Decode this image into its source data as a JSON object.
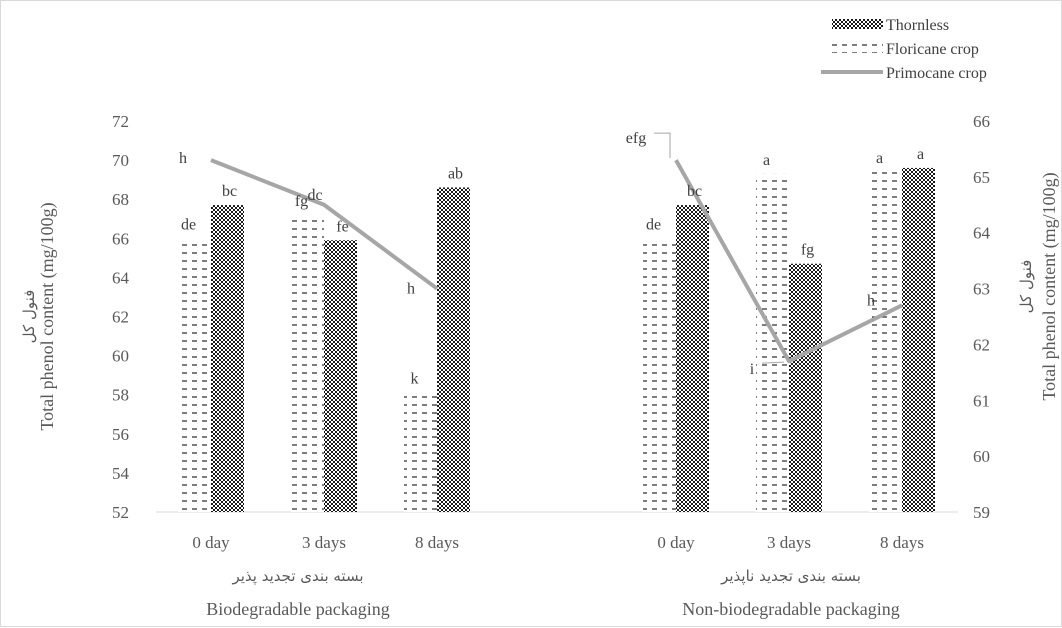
{
  "chart_data": {
    "type": "bar",
    "groups": [
      {
        "name_ar": "بسته بندی تجدید پذیر",
        "name_en": "Biodegradable packaging",
        "categories": [
          "0 day",
          "3 days",
          "8 days"
        ]
      },
      {
        "name_ar": "بسته بندی تجدید ناپذیر",
        "name_en": "Non-biodegradable packaging",
        "categories": [
          "0 day",
          "3 days",
          "8 days"
        ]
      }
    ],
    "series": [
      {
        "name": "Floricane crop",
        "kind": "bar",
        "axis": "left",
        "pattern": "dashes",
        "values": [
          66.0,
          67.2,
          58.1,
          66.0,
          69.3,
          69.4
        ],
        "labels": [
          "de",
          "fg",
          "k",
          "de",
          "a",
          "a"
        ]
      },
      {
        "name": "Thornless",
        "kind": "bar",
        "axis": "left",
        "pattern": "dots",
        "values": [
          67.7,
          65.9,
          68.6,
          67.7,
          64.7,
          69.6
        ],
        "labels": [
          "bc",
          "fe",
          "ab",
          "bc",
          "fg",
          "a"
        ]
      },
      {
        "name": "Primocane crop",
        "kind": "line",
        "axis": "right",
        "color": "#a6a6a6",
        "values": [
          65.3,
          64.5,
          63.0,
          65.3,
          61.7,
          62.7
        ],
        "labels": [
          "h",
          "dc",
          "h",
          "efg",
          "i",
          "h"
        ]
      }
    ],
    "y_left": {
      "label_en": "Total phenol content (mg/100g)",
      "label_ar": "فنول کل",
      "min": 52,
      "max": 72,
      "step": 2
    },
    "y_right": {
      "label_en": "Total phenol content (mg/100g)",
      "label_ar": "فنول کل",
      "min": 59,
      "max": 66,
      "step": 1
    },
    "legend_position": "top-right",
    "grid": false
  }
}
